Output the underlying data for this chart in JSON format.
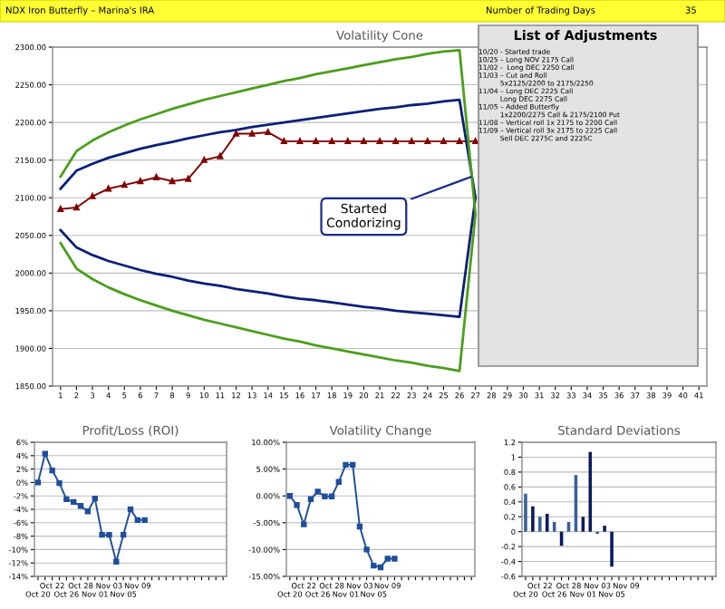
{
  "chart_data": [
    {
      "type": "line",
      "title": "Volatility Cone",
      "categories": [
        "1",
        "2",
        "3",
        "4",
        "5",
        "6",
        "7",
        "8",
        "9",
        "10",
        "11",
        "12",
        "13",
        "14",
        "15",
        "16",
        "17",
        "18",
        "19",
        "20",
        "21",
        "22",
        "23",
        "24",
        "25",
        "26",
        "27",
        "28",
        "29",
        "30",
        "31",
        "32",
        "33",
        "34",
        "35",
        "36",
        "37",
        "38",
        "39",
        "40",
        "41"
      ],
      "series": [
        {
          "color": "#4a9e1c",
          "marker": "none",
          "x": [
            "1",
            "2",
            "3",
            "4",
            "5",
            "6",
            "7",
            "8",
            "9",
            "10",
            "11",
            "12",
            "13",
            "14",
            "15",
            "16",
            "17",
            "18",
            "19",
            "20",
            "21",
            "22",
            "23",
            "24",
            "25",
            "26",
            "27",
            "26",
            "25",
            "24",
            "23",
            "22",
            "21",
            "20",
            "19",
            "18",
            "17",
            "16",
            "15",
            "14",
            "13",
            "12",
            "11",
            "10",
            "9",
            "8",
            "7",
            "6",
            "5",
            "4",
            "3",
            "2",
            "1"
          ],
          "values": [
            2128,
            2162,
            2176,
            2187,
            2196,
            2204,
            2211,
            2218,
            2224,
            2230,
            2235,
            2240,
            2245,
            2250,
            2255,
            2259,
            2264,
            2268,
            2272,
            2276,
            2280,
            2284,
            2287,
            2291,
            2294,
            2296,
            2078,
            1870,
            1874,
            1877,
            1881,
            1884,
            1888,
            1892,
            1896,
            1900,
            1904,
            1909,
            1913,
            1918,
            1923,
            1928,
            1933,
            1938,
            1944,
            1950,
            1957,
            1964,
            1972,
            1981,
            1992,
            2006,
            2040
          ]
        },
        {
          "color": "#0a1f78",
          "marker": "none",
          "x": [
            "1",
            "2",
            "3",
            "4",
            "5",
            "6",
            "7",
            "8",
            "9",
            "10",
            "11",
            "12",
            "13",
            "14",
            "15",
            "16",
            "17",
            "18",
            "19",
            "20",
            "21",
            "22",
            "23",
            "24",
            "25",
            "26",
            "27",
            "26",
            "25",
            "24",
            "23",
            "22",
            "21",
            "20",
            "19",
            "18",
            "17",
            "16",
            "15",
            "14",
            "13",
            "12",
            "11",
            "10",
            "9",
            "8",
            "7",
            "6",
            "5",
            "4",
            "3",
            "2",
            "1"
          ],
          "values": [
            2112,
            2136,
            2145,
            2153,
            2159,
            2165,
            2170,
            2174,
            2179,
            2183,
            2187,
            2190,
            2194,
            2197,
            2200,
            2203,
            2206,
            2209,
            2212,
            2215,
            2218,
            2220,
            2223,
            2225,
            2228,
            2230,
            2100,
            1942,
            1944,
            1946,
            1948,
            1950,
            1953,
            1955,
            1958,
            1961,
            1964,
            1966,
            1969,
            1973,
            1976,
            1979,
            1983,
            1986,
            1990,
            1995,
            1999,
            2004,
            2010,
            2016,
            2024,
            2034,
            2057
          ]
        },
        {
          "color": "#800000",
          "marker": "triangle",
          "values": [
            2085,
            2087,
            2102,
            2112,
            2117,
            2122,
            2127,
            2122,
            2125,
            2150,
            2155,
            2185,
            2185,
            2187,
            2175,
            2175,
            2175,
            2175,
            2175,
            2175,
            2175,
            2175,
            2175,
            2175,
            2175,
            2175,
            2175,
            null,
            null,
            null,
            null,
            null,
            null,
            null,
            null,
            null,
            null,
            null,
            null,
            null,
            null
          ]
        }
      ],
      "ylim": [
        1850,
        2300
      ],
      "yticks": [
        {
          "value": 1850,
          "label": "1850.00"
        },
        {
          "value": 1900,
          "label": "1900.00"
        },
        {
          "value": 1950,
          "label": "1950.00"
        },
        {
          "value": 2000,
          "label": "2000.00"
        },
        {
          "value": 2050,
          "label": "2050.00"
        },
        {
          "value": 2100,
          "label": "2100.00"
        },
        {
          "value": 2150,
          "label": "2150.00"
        },
        {
          "value": 2200,
          "label": "2200.00"
        },
        {
          "value": 2250,
          "label": "2250.00"
        },
        {
          "value": 2300,
          "label": "2300.00"
        }
      ],
      "grid": "y",
      "annotations": [
        "NDX Iron Butterfly – Marina's IRA",
        "Number of Trading Days",
        "35",
        {
          "text": "Started\nCondorizing",
          "x": "27",
          "y": 2130
        },
        "List of Adjustments",
        "10/20 - Started trade\n10/25 – Long NOV 2175 Call\n11/02 -  Long DEC 2250 Call\n11/03 – Cut and Roll\n          5x2125/2200 to 2175/2250\n11/04 – Long DEC 2225 Call\n          Long DEC 2275 Call\n11/05 – Added Butterfly\n          1x2200/2275 Call & 2175/2100 Put\n11/08 – Vertical roll 1x 2175 to 2200 Call\n11/09 – Vertical roll 3x 2175 to 2225 Call\n          Sell DEC 2275C and 2225C"
      ]
    },
    {
      "type": "line",
      "title": "Profit/Loss (ROI)",
      "categories": [
        "Oct 20",
        null,
        "Oct 22",
        null,
        "Oct 26",
        null,
        "Oct 28",
        null,
        "Nov 01",
        null,
        "Nov 03",
        null,
        "Nov 05",
        null,
        "Nov 09",
        null,
        null,
        null,
        null,
        null,
        null,
        null,
        null,
        null,
        null,
        null,
        null
      ],
      "series": [
        {
          "color": "#1f4e9a",
          "values": [
            0,
            4.3,
            1.8,
            -0.1,
            -2.5,
            -2.9,
            -3.5,
            -4.3,
            -2.4,
            -7.8,
            -7.8,
            -11.8,
            -7.8,
            -4.0,
            -5.6,
            -5.6,
            null,
            null,
            null,
            null,
            null,
            null,
            null,
            null,
            null,
            null,
            null
          ]
        }
      ],
      "marker": "square",
      "ylim": [
        -14,
        6
      ],
      "yticks": [
        {
          "value": -14,
          "label": "-14%"
        },
        {
          "value": -12,
          "label": "-12%"
        },
        {
          "value": -10,
          "label": "-10%"
        },
        {
          "value": -8,
          "label": "-8%"
        },
        {
          "value": -6,
          "label": "-6%"
        },
        {
          "value": -4,
          "label": "-4%"
        },
        {
          "value": -2,
          "label": "-2%"
        },
        {
          "value": 0,
          "label": "0%"
        },
        {
          "value": 2,
          "label": "2%"
        },
        {
          "value": 4,
          "label": "4%"
        },
        {
          "value": 6,
          "label": "6%"
        }
      ],
      "grid": "y"
    },
    {
      "type": "line",
      "title": "Volatility Change",
      "categories": [
        "Oct 20",
        null,
        "Oct 22",
        null,
        "Oct 26",
        null,
        "Oct 28",
        null,
        "Nov 01",
        null,
        "Nov 03",
        null,
        "Nov 05",
        null,
        "Nov 09",
        null,
        null,
        null,
        null,
        null,
        null,
        null,
        null,
        null,
        null,
        null,
        null
      ],
      "series": [
        {
          "color": "#1f4e9a",
          "values": [
            0,
            -1.7,
            -5.3,
            -0.6,
            0.8,
            -0.1,
            -0.1,
            2.6,
            5.8,
            5.8,
            -5.7,
            -10,
            -13,
            -13.3,
            -11.7,
            -11.7,
            null,
            null,
            null,
            null,
            null,
            null,
            null,
            null,
            null,
            null,
            null
          ]
        }
      ],
      "marker": "square",
      "ylim": [
        -15,
        10
      ],
      "yticks": [
        {
          "value": -15,
          "label": "-15.00%"
        },
        {
          "value": -10,
          "label": "-10.00%"
        },
        {
          "value": -5,
          "label": "-5.00%"
        },
        {
          "value": 0,
          "label": "0.00%"
        },
        {
          "value": 5,
          "label": "5.00%"
        },
        {
          "value": 10,
          "label": "10.00%"
        }
      ],
      "grid": "y"
    },
    {
      "type": "bar",
      "title": "Standard Deviations",
      "categories": [
        "Oct 20",
        null,
        "Oct 22",
        null,
        "Oct 26",
        null,
        "Oct 28",
        null,
        "Nov 01",
        null,
        "Nov 03",
        null,
        "Nov 05",
        null,
        "Nov 09",
        null,
        null,
        null,
        null,
        null,
        null,
        null,
        null,
        null,
        null,
        null,
        null
      ],
      "values": [
        0.51,
        0.34,
        0.2,
        0.24,
        0.13,
        -0.19,
        0.13,
        0.76,
        0.2,
        1.07,
        -0.03,
        0.08,
        -0.47,
        null,
        null,
        null,
        null,
        null,
        null,
        null,
        null,
        null,
        null,
        null,
        null,
        null,
        null
      ],
      "colors": [
        "#3a5f9a",
        "#0b1a5e",
        "#3a5f9a",
        "#0b1a5e",
        "#3a5f9a",
        "#0b1a5e",
        "#3a5f9a",
        "#3a5f9a",
        "#0b1a5e",
        "#0b1a5e",
        "#3a5f9a",
        "#0b1a5e",
        "#0b1a5e",
        "#0b1a5e",
        "#0b1a5e",
        "#0b1a5e",
        "#0b1a5e",
        "#0b1a5e",
        "#0b1a5e",
        "#0b1a5e",
        "#0b1a5e",
        "#0b1a5e",
        "#0b1a5e",
        "#0b1a5e",
        "#0b1a5e",
        "#0b1a5e",
        "#0b1a5e"
      ],
      "ylim": [
        -0.6,
        1.2
      ],
      "yticks": [
        -0.6,
        -0.4,
        -0.2,
        0,
        0.2,
        0.4,
        0.6,
        0.8,
        1,
        1.2
      ],
      "grid": "y"
    }
  ]
}
